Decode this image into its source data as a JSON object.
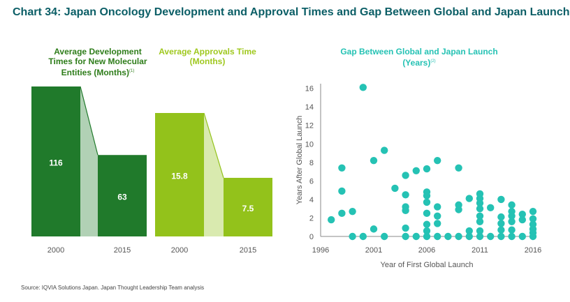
{
  "title": "Chart 34: Japan Oncology Development and Approval Times and Gap Between Global and Japan Launch",
  "source": "Source: IQVIA Solutions Japan. Japan Thought Leadership Team analysis",
  "colors": {
    "dev": "#207a2b",
    "approval": "#93c21b",
    "gap": "#25c2b4",
    "title": "#0b5e66"
  },
  "chart_data": [
    {
      "type": "bar",
      "title_lines": [
        "Average Development",
        "Times for New Molecular",
        "Entities (Months)"
      ],
      "title_note": "(1)",
      "categories": [
        "2000",
        "2015"
      ],
      "values": [
        116,
        63
      ],
      "value_labels": [
        "116",
        "63"
      ]
    },
    {
      "type": "bar",
      "title_lines": [
        "Average Approvals Time",
        "(Months)"
      ],
      "categories": [
        "2000",
        "2015"
      ],
      "values": [
        15.8,
        7.5
      ],
      "value_labels": [
        "15.8",
        "7.5"
      ]
    },
    {
      "type": "scatter",
      "title_lines": [
        "Gap Between Global and Japan Launch",
        "(Years)"
      ],
      "title_note": "(2)",
      "xlabel": "Year of First Global Launch",
      "ylabel": "Years After Global Launch",
      "xlim": [
        1996,
        2016
      ],
      "ylim": [
        0,
        16.5
      ],
      "xticks": [
        1996,
        2001,
        2006,
        2011,
        2016
      ],
      "yticks": [
        0,
        2,
        4,
        6,
        8,
        10,
        12,
        14,
        16
      ],
      "points": [
        [
          1997,
          1.8
        ],
        [
          1998,
          7.4
        ],
        [
          1998,
          4.9
        ],
        [
          1998,
          2.5
        ],
        [
          1999,
          0
        ],
        [
          1999,
          2.7
        ],
        [
          2000,
          16.1
        ],
        [
          2000,
          0
        ],
        [
          2001,
          8.2
        ],
        [
          2001,
          0.8
        ],
        [
          2002,
          9.3
        ],
        [
          2002,
          0
        ],
        [
          2003,
          5.2
        ],
        [
          2004,
          6.6
        ],
        [
          2004,
          4.5
        ],
        [
          2004,
          3.2
        ],
        [
          2004,
          2.8
        ],
        [
          2004,
          0.9
        ],
        [
          2004,
          0
        ],
        [
          2005,
          7.1
        ],
        [
          2005,
          0
        ],
        [
          2006,
          7.3
        ],
        [
          2006,
          4.8
        ],
        [
          2006,
          4.4
        ],
        [
          2006,
          3.7
        ],
        [
          2006,
          2.5
        ],
        [
          2006,
          1.3
        ],
        [
          2006,
          0.6
        ],
        [
          2006,
          0
        ],
        [
          2007,
          8.2
        ],
        [
          2007,
          3.2
        ],
        [
          2007,
          2.2
        ],
        [
          2007,
          1.4
        ],
        [
          2007,
          0
        ],
        [
          2008,
          0
        ],
        [
          2009,
          7.4
        ],
        [
          2009,
          3.4
        ],
        [
          2009,
          2.9
        ],
        [
          2009,
          0
        ],
        [
          2010,
          4.1
        ],
        [
          2010,
          0.6
        ],
        [
          2010,
          0
        ],
        [
          2011,
          4.6
        ],
        [
          2011,
          4.1
        ],
        [
          2011,
          3.6
        ],
        [
          2011,
          3.0
        ],
        [
          2011,
          2.2
        ],
        [
          2011,
          1.6
        ],
        [
          2011,
          0.6
        ],
        [
          2011,
          0
        ],
        [
          2012,
          3.1
        ],
        [
          2012,
          0
        ],
        [
          2013,
          4.0
        ],
        [
          2013,
          2.1
        ],
        [
          2013,
          1.4
        ],
        [
          2013,
          0.7
        ],
        [
          2013,
          0
        ],
        [
          2014,
          3.4
        ],
        [
          2014,
          2.7
        ],
        [
          2014,
          2.2
        ],
        [
          2014,
          1.6
        ],
        [
          2014,
          0.7
        ],
        [
          2014,
          0
        ],
        [
          2015,
          2.4
        ],
        [
          2015,
          1.8
        ],
        [
          2015,
          0
        ],
        [
          2016,
          2.7
        ],
        [
          2016,
          1.9
        ],
        [
          2016,
          1.3
        ],
        [
          2016,
          0.8
        ],
        [
          2016,
          0.4
        ],
        [
          2016,
          0
        ]
      ]
    }
  ]
}
